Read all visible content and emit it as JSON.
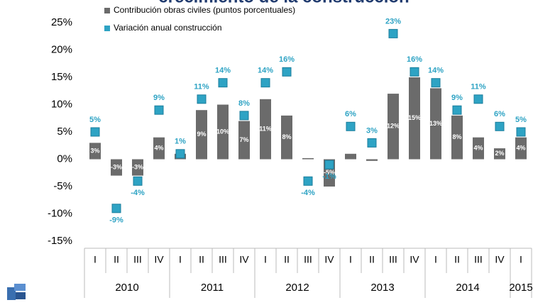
{
  "chart_data": {
    "type": "bar",
    "title": "crecimiento de la construcción",
    "categories": [
      "I",
      "II",
      "III",
      "IV",
      "I",
      "II",
      "III",
      "IV",
      "I",
      "II",
      "III",
      "IV",
      "I",
      "II",
      "III",
      "IV",
      "I",
      "II",
      "III",
      "IV",
      "I"
    ],
    "years": [
      "2010",
      "2011",
      "2012",
      "2013",
      "2014",
      "2015"
    ],
    "series": [
      {
        "name": "Contribución obras civiles (puntos porcentuales)",
        "type": "bar",
        "color": "#6b6b6b",
        "values": [
          3,
          -3,
          -3,
          4,
          1,
          9,
          10,
          7,
          11,
          8,
          0.2,
          -5,
          1,
          -0.3,
          12,
          15,
          13,
          8,
          4,
          2,
          4
        ],
        "value_labels": [
          "3%",
          "-3%",
          "-3%",
          "4%",
          null,
          "9%",
          "10%",
          "7%",
          "11%",
          "8%",
          null,
          "-5%",
          null,
          null,
          "12%",
          "15%",
          "13%",
          "8%",
          "4%",
          "2%",
          "4%"
        ]
      },
      {
        "name": "Variación anual construcción",
        "type": "scatter",
        "color": "#2ea3c4",
        "values": [
          5,
          -9,
          -4,
          9,
          1,
          11,
          14,
          8,
          14,
          16,
          -4,
          -1,
          6,
          3,
          23,
          16,
          14,
          9,
          11,
          6,
          5
        ],
        "value_labels": [
          "5%",
          "-9%",
          "-4%",
          "9%",
          "1%",
          "11%",
          "14%",
          "8%",
          "14%",
          "16%",
          "-4%",
          "-1%",
          "6%",
          "3%",
          "23%",
          "16%",
          "14%",
          "9%",
          "11%",
          "6%",
          "5%"
        ]
      }
    ],
    "ylim": [
      -15,
      25
    ],
    "yticks": [
      {
        "value": -15,
        "label": "-15%"
      },
      {
        "value": -10,
        "label": "-10%"
      },
      {
        "value": -5,
        "label": "-5%"
      },
      {
        "value": 0,
        "label": "0%"
      },
      {
        "value": 5,
        "label": "5%"
      },
      {
        "value": 10,
        "label": "10%"
      },
      {
        "value": 15,
        "label": "15%"
      },
      {
        "value": 20,
        "label": "20%"
      },
      {
        "value": 25,
        "label": "25%"
      }
    ],
    "grid": false
  }
}
